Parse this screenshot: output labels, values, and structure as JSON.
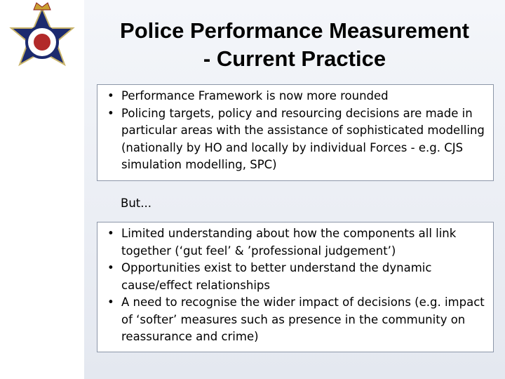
{
  "header": {
    "title_lines": [
      "Police Performance Measurement",
      "- Current Practice"
    ]
  },
  "section_1": {
    "bullets": [
      "Performance Framework is now more rounded",
      "Policing targets, policy and resourcing decisions are made in particular areas with the assistance of sophisticated modelling (nationally by HO and locally by individual Forces - e.g. CJS simulation modelling, SPC)"
    ]
  },
  "transition": "But...",
  "section_2": {
    "bullets": [
      "Limited understanding about how the components all link together (‘gut feel’ & ’professional judgement’)",
      "Opportunities exist to better understand the dynamic cause/effect relationships",
      "A need to recognise the wider impact of decisions (e.g. impact of ‘softer’ measures such as presence in the community on reassurance and crime)"
    ]
  }
}
